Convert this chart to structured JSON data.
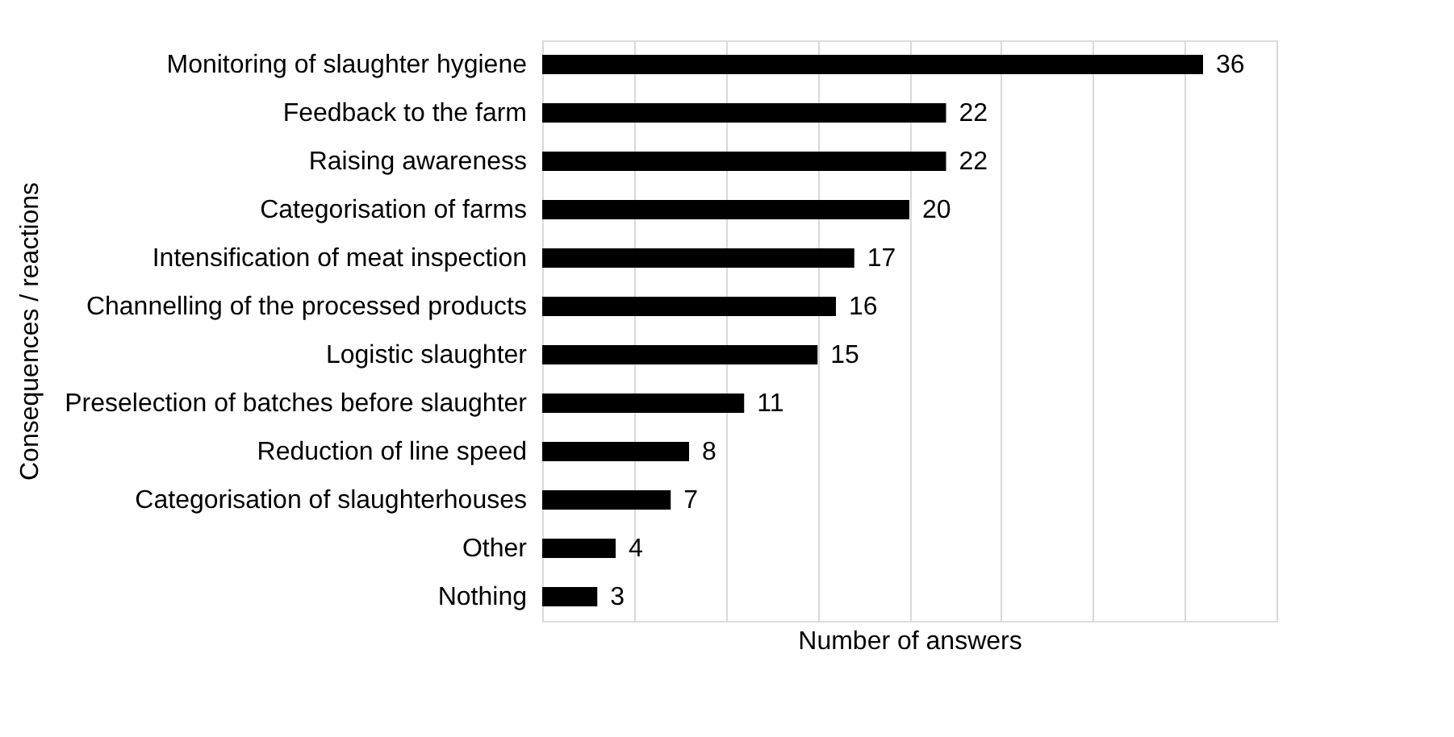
{
  "chart_data": {
    "type": "bar",
    "orientation": "horizontal",
    "xlabel": "Number of answers",
    "ylabel": "Consequences / reactions",
    "categories": [
      "Monitoring of slaughter hygiene",
      "Feedback to the farm",
      "Raising awareness",
      "Categorisation of farms",
      "Intensification of meat inspection",
      "Channelling of the processed products",
      "Logistic slaughter",
      "Preselection of batches before slaughter",
      "Reduction of line speed",
      "Categorisation of slaughterhouses",
      "Other",
      "Nothing"
    ],
    "values": [
      36,
      22,
      22,
      20,
      17,
      16,
      15,
      11,
      8,
      7,
      4,
      3
    ],
    "color": "#000000",
    "data_labels": true,
    "xlim": [
      0,
      40
    ],
    "xticks": [
      {
        "value": 0,
        "label": null
      },
      {
        "value": 5,
        "label": null
      },
      {
        "value": 10,
        "label": null
      },
      {
        "value": 15,
        "label": null
      },
      {
        "value": 20,
        "label": null
      },
      {
        "value": 25,
        "label": null
      },
      {
        "value": 30,
        "label": null
      },
      {
        "value": 35,
        "label": null
      },
      {
        "value": 40,
        "label": null
      }
    ],
    "grid": "x",
    "tick_labels": "y"
  }
}
